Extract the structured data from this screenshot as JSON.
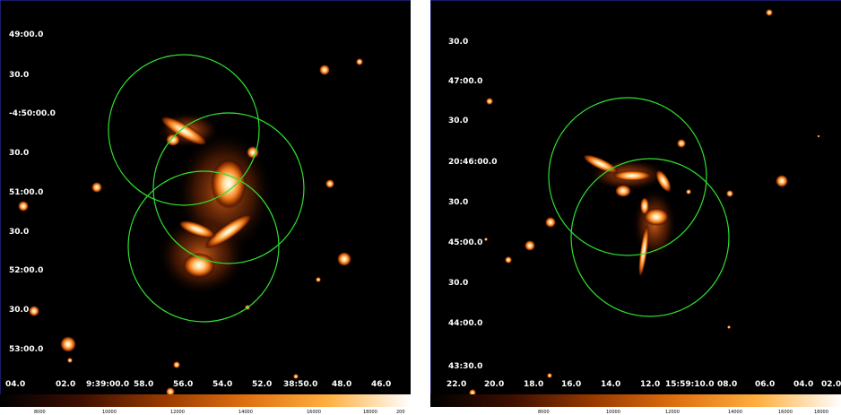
{
  "left_panel": {
    "dec_labels": [
      "49:00.0",
      "30.0",
      "-4:50:00.0",
      "30.0",
      "51:00.0",
      "30.0",
      "52:00.0",
      "30.0",
      "53:00.0"
    ],
    "ra_labels": [
      "04.0",
      "02.0",
      "9:39:00.0",
      "58.0",
      "56.0",
      "54.0",
      "52.0",
      "38:50.0",
      "48.0",
      "46.0"
    ],
    "colorbar_labels": [
      "8000",
      "10000",
      "12000",
      "14000",
      "16000",
      "18000",
      "200"
    ]
  },
  "right_panel": {
    "dec_labels": [
      "30.0",
      "47:00.0",
      "30.0",
      "20:46:00.0",
      "30.0",
      "45:00.0",
      "30.0",
      "44:00.0",
      "43:30.0"
    ],
    "ra_labels": [
      "22.0",
      "20.0",
      "18.0",
      "16.0",
      "14.0",
      "12.0",
      "15:59:10.0",
      "08.0",
      "06.0",
      "04.0",
      "02.0"
    ],
    "colorbar_labels": [
      "8000",
      "10000",
      "12000",
      "14000",
      "16000",
      "18000"
    ]
  },
  "colors": {
    "region_circle": "#2fe02f",
    "background": "#000000",
    "tick_marks": "#3333cc"
  }
}
